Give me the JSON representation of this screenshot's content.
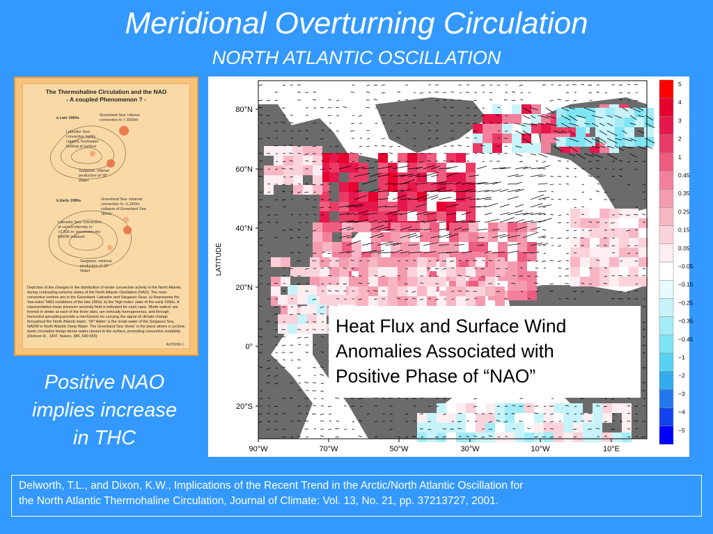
{
  "slide": {
    "title": "Meridional Overturning Circulation",
    "subtitle": "NORTH ATLANTIC OSCILLATION",
    "left_note_lines": [
      "Positive NAO",
      "implies increase",
      "in THC"
    ],
    "callout_lines": [
      "Heat Flux and Surface Wind",
      "Anomalies Associated with",
      "Positive Phase of “NAO”"
    ],
    "citation_lines": [
      "Delworth, T.L., and Dixon, K.W., Implications of the Recent Trend in the Arctic/North Atlantic Oscillation for",
      "the  North Atlantic Thermohaline Circulation, Journal of Climate: Vol. 13, No. 21, pp. 37213727, 2001."
    ]
  },
  "poster": {
    "title_lines": [
      "The Thermohaline Circulation and the NAO",
      "- A coupled Phenomenon ? -"
    ],
    "panel_a_label": "a  Late 1960s",
    "panel_a_greenland": "Greenland Sea: Intense convection to > 3500m",
    "panel_a_labrador": "Labrador Sea: convection tightly capped, freshwater buildup at surface",
    "panel_a_sargasso": "Sargasso: intense production of 18° Water",
    "panel_b_label": "b  Early 1990s",
    "panel_b_greenland": "Greenland Sea: minimal convection to <1,000m collapse of Greenland Sea 'dome'",
    "panel_b_labrador": "Labrador Sea: convection at record intensity to >2,300 m; penetrates the NADW sublayer",
    "panel_b_sargasso": "Sargasso: minimal production of 18° Water",
    "caption": "Depiction of the changes in the distribution of winter convective activity in the North Atlantic during contrasting extreme states of the North Atlantic Oscillation (NAO). The main convective centres are in the Greenland, Labrador and Sargasso Seas. a) Represents the 'low-index' NAO conditions of the late 1960s; b) the 'high-index' state of the early 1990s. A representative mean pressure anomaly field is indicated for each case. 'Mode waters' are formed in winter at each of the three sites, are vertically homogeneous, and through horizontal spreading provide a mechanism for carrying the signal of climate change throughout the North Atlantic basin. '18° Water' is the mode water of the Sargasso Sea, NADW is North Atlantic Deep Water. The Greenland Sea 'dome' is the place where a cyclonic basin circulation brings dense water closest to the surface, promoting convective instability (Dickson R., 1997, Nature, 386, 649-650)",
    "id": "AV/D5/99-1"
  },
  "map": {
    "y_axis_label": "LATITUDE",
    "lat_ticks": [
      "80°N",
      "60°N",
      "40°N",
      "20°N",
      "0°",
      "20°S"
    ],
    "lon_ticks": [
      "90°W",
      "70°W",
      "50°W",
      "30°W",
      "10°W",
      "10°E"
    ],
    "colorbar_labels": [
      "5",
      "4",
      "3",
      "2",
      "1",
      "0.45",
      "0.35",
      "0.25",
      "0.15",
      "0.05",
      "−0.05",
      "−0.15",
      "−0.25",
      "−0.35",
      "−0.45",
      "−1",
      "−2",
      "−3",
      "−4",
      "−5"
    ],
    "colorbar_colors": [
      "#ff0000",
      "#e6002e",
      "#e6174a",
      "#ea3a66",
      "#ee5c80",
      "#f2809c",
      "#f59bb0",
      "#f8b6c4",
      "#fbd2da",
      "#fdeef1",
      "#ffffff",
      "#e6fbfd",
      "#c6f4fa",
      "#a3ecf7",
      "#7fe4f4",
      "#55d2f2",
      "#33aaee",
      "#2277ee",
      "#1144ee",
      "#0000ff"
    ],
    "colors": {
      "land": "#6b6b6b",
      "white": "#ffffff"
    }
  }
}
